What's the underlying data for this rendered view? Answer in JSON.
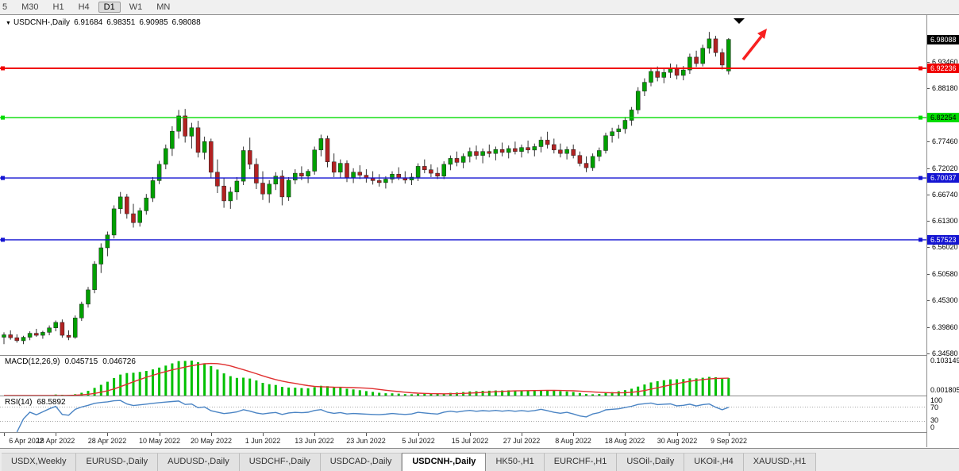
{
  "toolbar": {
    "timeframes": [
      "5",
      "M30",
      "H1",
      "H4",
      "D1",
      "W1",
      "MN"
    ],
    "active": "D1"
  },
  "symbol_header": {
    "expander": "▼",
    "title": "USDCNH-,Daily",
    "open": "6.91684",
    "high": "6.98351",
    "low": "6.90985",
    "close": "6.98088"
  },
  "price_axis": {
    "current": {
      "label": "6.98088",
      "value": 6.98088,
      "bg": "#000000",
      "fg": "#ffffff"
    },
    "ticks": [
      {
        "label": "6.93460",
        "value": 6.9346
      },
      {
        "label": "6.88180",
        "value": 6.8818
      },
      {
        "label": "6.77460",
        "value": 6.7746
      },
      {
        "label": "6.72020",
        "value": 6.7202
      },
      {
        "label": "6.66740",
        "value": 6.6674
      },
      {
        "label": "6.61300",
        "value": 6.613
      },
      {
        "label": "6.56020",
        "value": 6.5602
      },
      {
        "label": "6.50580",
        "value": 6.5058
      },
      {
        "label": "6.45300",
        "value": 6.453
      },
      {
        "label": "6.39860",
        "value": 6.3986
      },
      {
        "label": "6.34580",
        "value": 6.3458
      }
    ]
  },
  "hlines": [
    {
      "label": "6.92236",
      "value": 6.92236,
      "color": "#f00000",
      "fg": "#ffffff",
      "width": 2
    },
    {
      "label": "6.82254",
      "value": 6.82254,
      "color": "#00dc00",
      "fg": "#000000",
      "width": 1.4
    },
    {
      "label": "6.70037",
      "value": 6.70037,
      "color": "#1414d2",
      "fg": "#ffffff",
      "width": 1.4
    },
    {
      "label": "6.57523",
      "value": 6.57523,
      "color": "#1414d2",
      "fg": "#ffffff",
      "width": 1.4
    }
  ],
  "objects": {
    "arrow_color": "#f82020",
    "marker_color": "#000000"
  },
  "chart_data": {
    "type": "candlestick",
    "title": "USDCNH-,Daily",
    "ylim": [
      6.342,
      7.03
    ],
    "x_ticks": [
      {
        "i": 0,
        "label": "6 Apr 2022"
      },
      {
        "i": 8,
        "label": "18 Apr 2022"
      },
      {
        "i": 16,
        "label": "28 Apr 2022"
      },
      {
        "i": 24,
        "label": "10 May 2022"
      },
      {
        "i": 32,
        "label": "20 May 2022"
      },
      {
        "i": 40,
        "label": "1 Jun 2022"
      },
      {
        "i": 48,
        "label": "13 Jun 2022"
      },
      {
        "i": 56,
        "label": "23 Jun 2022"
      },
      {
        "i": 64,
        "label": "5 Jul 2022"
      },
      {
        "i": 72,
        "label": "15 Jul 2022"
      },
      {
        "i": 80,
        "label": "27 Jul 2022"
      },
      {
        "i": 88,
        "label": "8 Aug 2022"
      },
      {
        "i": 96,
        "label": "18 Aug 2022"
      },
      {
        "i": 104,
        "label": "30 Aug 2022"
      },
      {
        "i": 112,
        "label": "9 Sep 2022"
      }
    ],
    "candles": [
      [
        6.378,
        6.388,
        6.364,
        6.383
      ],
      [
        6.383,
        6.392,
        6.373,
        6.377
      ],
      [
        6.377,
        6.384,
        6.367,
        6.371
      ],
      [
        6.371,
        6.381,
        6.364,
        6.378
      ],
      [
        6.378,
        6.39,
        6.372,
        6.386
      ],
      [
        6.386,
        6.395,
        6.379,
        6.382
      ],
      [
        6.382,
        6.391,
        6.375,
        6.388
      ],
      [
        6.388,
        6.402,
        6.382,
        6.397
      ],
      [
        6.397,
        6.412,
        6.39,
        6.408
      ],
      [
        6.408,
        6.414,
        6.377,
        6.382
      ],
      [
        6.382,
        6.392,
        6.372,
        6.378
      ],
      [
        6.378,
        6.422,
        6.375,
        6.417
      ],
      [
        6.417,
        6.45,
        6.411,
        6.445
      ],
      [
        6.445,
        6.48,
        6.438,
        6.474
      ],
      [
        6.474,
        6.532,
        6.467,
        6.526
      ],
      [
        6.526,
        6.568,
        6.508,
        6.559
      ],
      [
        6.559,
        6.592,
        6.542,
        6.585
      ],
      [
        6.585,
        6.645,
        6.578,
        6.638
      ],
      [
        6.638,
        6.672,
        6.628,
        6.662
      ],
      [
        6.662,
        6.668,
        6.618,
        6.628
      ],
      [
        6.628,
        6.648,
        6.6,
        6.61
      ],
      [
        6.61,
        6.64,
        6.602,
        6.634
      ],
      [
        6.634,
        6.668,
        6.626,
        6.66
      ],
      [
        6.66,
        6.702,
        6.652,
        6.695
      ],
      [
        6.695,
        6.735,
        6.688,
        6.728
      ],
      [
        6.728,
        6.768,
        6.718,
        6.76
      ],
      [
        6.76,
        6.805,
        6.745,
        6.795
      ],
      [
        6.795,
        6.838,
        6.78,
        6.826
      ],
      [
        6.826,
        6.84,
        6.772,
        6.785
      ],
      [
        6.785,
        6.812,
        6.76,
        6.802
      ],
      [
        6.802,
        6.816,
        6.742,
        6.752
      ],
      [
        6.752,
        6.784,
        6.738,
        6.774
      ],
      [
        6.774,
        6.78,
        6.7,
        6.712
      ],
      [
        6.712,
        6.738,
        6.67,
        6.684
      ],
      [
        6.684,
        6.7,
        6.64,
        6.654
      ],
      [
        6.654,
        6.682,
        6.638,
        6.672
      ],
      [
        6.672,
        6.702,
        6.656,
        6.694
      ],
      [
        6.694,
        6.764,
        6.686,
        6.756
      ],
      [
        6.756,
        6.782,
        6.718,
        6.728
      ],
      [
        6.728,
        6.74,
        6.678,
        6.69
      ],
      [
        6.69,
        6.714,
        6.656,
        6.668
      ],
      [
        6.668,
        6.696,
        6.65,
        6.688
      ],
      [
        6.688,
        6.712,
        6.676,
        6.704
      ],
      [
        6.704,
        6.716,
        6.645,
        6.662
      ],
      [
        6.662,
        6.702,
        6.654,
        6.696
      ],
      [
        6.696,
        6.718,
        6.688,
        6.71
      ],
      [
        6.71,
        6.724,
        6.696,
        6.704
      ],
      [
        6.704,
        6.718,
        6.69,
        6.714
      ],
      [
        6.714,
        6.764,
        6.707,
        6.757
      ],
      [
        6.757,
        6.788,
        6.744,
        6.78
      ],
      [
        6.78,
        6.786,
        6.722,
        6.733
      ],
      [
        6.733,
        6.75,
        6.702,
        6.712
      ],
      [
        6.712,
        6.738,
        6.7,
        6.73
      ],
      [
        6.73,
        6.736,
        6.692,
        6.701
      ],
      [
        6.701,
        6.72,
        6.69,
        6.712
      ],
      [
        6.712,
        6.726,
        6.698,
        6.706
      ],
      [
        6.706,
        6.718,
        6.691,
        6.7
      ],
      [
        6.7,
        6.714,
        6.687,
        6.695
      ],
      [
        6.695,
        6.708,
        6.683,
        6.691
      ],
      [
        6.691,
        6.704,
        6.679,
        6.698
      ],
      [
        6.698,
        6.714,
        6.69,
        6.708
      ],
      [
        6.708,
        6.722,
        6.696,
        6.701
      ],
      [
        6.701,
        6.714,
        6.689,
        6.696
      ],
      [
        6.696,
        6.71,
        6.686,
        6.702
      ],
      [
        6.702,
        6.73,
        6.694,
        6.724
      ],
      [
        6.724,
        6.738,
        6.71,
        6.717
      ],
      [
        6.717,
        6.728,
        6.702,
        6.71
      ],
      [
        6.71,
        6.722,
        6.698,
        6.704
      ],
      [
        6.704,
        6.734,
        6.698,
        6.728
      ],
      [
        6.728,
        6.746,
        6.716,
        6.74
      ],
      [
        6.74,
        6.754,
        6.724,
        6.732
      ],
      [
        6.732,
        6.75,
        6.72,
        6.744
      ],
      [
        6.744,
        6.762,
        6.732,
        6.754
      ],
      [
        6.754,
        6.766,
        6.738,
        6.746
      ],
      [
        6.746,
        6.76,
        6.73,
        6.754
      ],
      [
        6.754,
        6.768,
        6.742,
        6.75
      ],
      [
        6.75,
        6.764,
        6.736,
        6.758
      ],
      [
        6.758,
        6.772,
        6.744,
        6.752
      ],
      [
        6.752,
        6.766,
        6.74,
        6.76
      ],
      [
        6.76,
        6.774,
        6.748,
        6.754
      ],
      [
        6.754,
        6.768,
        6.742,
        6.762
      ],
      [
        6.762,
        6.776,
        6.75,
        6.757
      ],
      [
        6.757,
        6.77,
        6.744,
        6.764
      ],
      [
        6.764,
        6.784,
        6.752,
        6.777
      ],
      [
        6.777,
        6.794,
        6.76,
        6.768
      ],
      [
        6.768,
        6.78,
        6.75,
        6.757
      ],
      [
        6.757,
        6.77,
        6.742,
        6.75
      ],
      [
        6.75,
        6.764,
        6.738,
        6.758
      ],
      [
        6.758,
        6.768,
        6.74,
        6.746
      ],
      [
        6.746,
        6.754,
        6.724,
        6.73
      ],
      [
        6.73,
        6.744,
        6.712,
        6.721
      ],
      [
        6.721,
        6.75,
        6.715,
        6.744
      ],
      [
        6.744,
        6.762,
        6.734,
        6.756
      ],
      [
        6.756,
        6.792,
        6.75,
        6.786
      ],
      [
        6.786,
        6.802,
        6.772,
        6.794
      ],
      [
        6.794,
        6.808,
        6.78,
        6.8
      ],
      [
        6.8,
        6.824,
        6.79,
        6.817
      ],
      [
        6.817,
        6.844,
        6.806,
        6.838
      ],
      [
        6.838,
        6.884,
        6.83,
        6.876
      ],
      [
        6.876,
        6.902,
        6.866,
        6.894
      ],
      [
        6.894,
        6.924,
        6.886,
        6.916
      ],
      [
        6.916,
        6.926,
        6.896,
        6.904
      ],
      [
        6.904,
        6.922,
        6.892,
        6.914
      ],
      [
        6.914,
        6.932,
        6.903,
        6.922
      ],
      [
        6.922,
        6.93,
        6.9,
        6.908
      ],
      [
        6.908,
        6.927,
        6.898,
        6.919
      ],
      [
        6.919,
        6.952,
        6.911,
        6.945
      ],
      [
        6.945,
        6.958,
        6.925,
        6.932
      ],
      [
        6.932,
        6.97,
        6.926,
        6.963
      ],
      [
        6.963,
        6.996,
        6.952,
        6.982
      ],
      [
        6.982,
        6.988,
        6.946,
        6.954
      ],
      [
        6.954,
        6.962,
        6.92,
        6.929
      ],
      [
        6.91684,
        6.98351,
        6.90985,
        6.98088
      ]
    ]
  },
  "macd": {
    "label": "MACD(12,26,9)",
    "value_main": "0.045715",
    "value_signal": "0.046726",
    "scale_top": "0.103149",
    "scale_bottom": "0.001805",
    "ylim": [
      0,
      0.112
    ],
    "bar_color": "#00c000",
    "signal_color": "#e03030"
  },
  "rsi": {
    "label": "RSI(14)",
    "value": "68.5892",
    "levels": [
      "100",
      "70",
      "30",
      "0"
    ],
    "level_lines": [
      70,
      30
    ],
    "ylim": [
      0,
      100
    ],
    "line_color": "#4a84c4"
  },
  "colors": {
    "bull": "#00a000",
    "bear": "#b22222",
    "wick": "#333333",
    "outline": "#1f1f1f"
  },
  "tabs": {
    "items": [
      "USDX,Weekly",
      "EURUSD-,Daily",
      "AUDUSD-,Daily",
      "USDCHF-,Daily",
      "USDCAD-,Daily",
      "USDCNH-,Daily",
      "HK50-,H1",
      "EURCHF-,H1",
      "USOil-,Daily",
      "UKOil-,H4",
      "XAUUSD-,H1"
    ],
    "active": "USDCNH-,Daily"
  }
}
